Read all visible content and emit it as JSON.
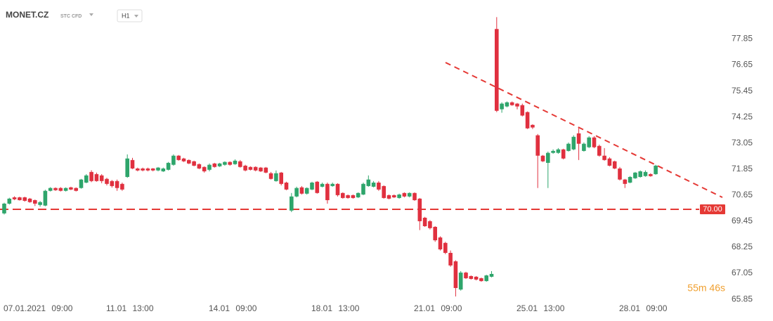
{
  "header": {
    "symbol": "MONET.CZ",
    "instrument": "STC CFD",
    "timeframe": "H1"
  },
  "countdown": "55m 46s",
  "chart_data": {
    "type": "candlestick",
    "up_color": "#2ea56b",
    "down_color": "#e0303f",
    "ylim": [
      65.4,
      79.0
    ],
    "yticks": [
      65.85,
      67.05,
      68.25,
      69.45,
      70.65,
      71.85,
      73.05,
      74.25,
      75.45,
      76.65,
      77.85
    ],
    "hline": {
      "value": 70,
      "label": "70.00",
      "color": "#e53935"
    },
    "categories": [
      "07.01.2021 09:00",
      null,
      null,
      null,
      null,
      null,
      null,
      null,
      null,
      null,
      null,
      null,
      null,
      null,
      null,
      null,
      null,
      null,
      null,
      null,
      "11.01 13:00",
      null,
      null,
      null,
      null,
      null,
      null,
      null,
      null,
      null,
      null,
      null,
      null,
      null,
      null,
      null,
      null,
      null,
      null,
      null,
      "14.01 09:00",
      null,
      null,
      null,
      null,
      null,
      null,
      null,
      null,
      null,
      null,
      null,
      null,
      null,
      null,
      null,
      null,
      null,
      null,
      null,
      "18.01 13:00",
      null,
      null,
      null,
      null,
      null,
      null,
      null,
      null,
      null,
      null,
      null,
      null,
      null,
      null,
      null,
      null,
      null,
      null,
      null,
      "21.01 09:00",
      null,
      null,
      null,
      null,
      null,
      null,
      null,
      null,
      null,
      null,
      null,
      null,
      null,
      null,
      null,
      null,
      null,
      null,
      null,
      "25.01 13:00",
      null,
      null,
      null,
      null,
      null,
      null,
      null,
      null,
      null,
      null,
      null,
      null,
      null,
      null,
      null,
      null,
      null,
      null,
      null,
      "28.01 09:00",
      null,
      null,
      null,
      null,
      null,
      null,
      null
    ],
    "open": [
      69.81,
      70.26,
      70.55,
      70.55,
      70.55,
      70.49,
      70.42,
      70.2,
      70.17,
      70.85,
      70.98,
      70.98,
      70.85,
      71.01,
      70.98,
      70.98,
      71.23,
      71.72,
      71.62,
      71.56,
      71.4,
      71.3,
      71.3,
      71.17,
      71.49,
      72.27,
      71.88,
      71.88,
      71.88,
      71.88,
      71.79,
      71.75,
      71.82,
      72.05,
      72.47,
      72.34,
      72.27,
      72.21,
      72.08,
      71.95,
      71.82,
      72.11,
      71.98,
      72.05,
      72.18,
      72.08,
      72.21,
      72.01,
      71.95,
      71.95,
      71.92,
      71.92,
      71.66,
      71.3,
      71.69,
      71.23,
      69.94,
      70.59,
      71.01,
      70.72,
      70.91,
      71.27,
      71.04,
      71.17,
      71.07,
      71.17,
      70.75,
      70.65,
      70.65,
      70.55,
      70.68,
      71.07,
      71.04,
      71.23,
      71.07,
      70.65,
      70.65,
      70.52,
      70.75,
      70.59,
      70.75,
      70.49,
      69.61,
      69.45,
      69.19,
      68.7,
      68.45,
      67.99,
      67.6,
      66.3,
      67.08,
      66.92,
      66.89,
      66.82,
      66.69,
      66.89,
      78.31,
      74.61,
      74.74,
      74.93,
      74.87,
      74.8,
      74.48,
      73.89,
      73.41,
      72.47,
      72.14,
      72.6,
      72.6,
      72.76,
      72.69,
      72.76,
      73.5,
      72.69,
      72.86,
      73.31,
      72.92,
      72.47,
      72.34,
      72.21,
      71.88,
      71.37,
      71.23,
      71.43,
      71.49,
      71.53,
      71.62,
      71.62
    ],
    "high": [
      70.3,
      70.53,
      70.6,
      70.58,
      70.58,
      70.52,
      70.45,
      70.38,
      70.9,
      71.02,
      71.01,
      71.02,
      71.01,
      71.04,
      71.01,
      71.4,
      71.62,
      71.8,
      71.69,
      71.62,
      71.45,
      71.35,
      71.37,
      71.23,
      72.53,
      72.37,
      71.92,
      71.92,
      71.92,
      71.9,
      71.95,
      71.92,
      72.18,
      72.53,
      72.5,
      72.37,
      72.3,
      72.24,
      72.11,
      71.98,
      72.11,
      72.14,
      72.14,
      72.21,
      72.21,
      72.3,
      72.27,
      72.05,
      71.98,
      71.98,
      71.95,
      71.95,
      71.72,
      71.79,
      71.72,
      71.27,
      70.75,
      71.04,
      71.07,
      71.01,
      71.27,
      71.3,
      71.23,
      71.23,
      71.23,
      71.2,
      70.78,
      70.68,
      70.68,
      70.78,
      71.23,
      71.56,
      71.3,
      71.3,
      71.1,
      70.68,
      70.68,
      70.72,
      70.78,
      70.78,
      70.78,
      70.52,
      69.65,
      69.5,
      69.22,
      68.75,
      68.5,
      68.1,
      67.65,
      67.15,
      67.12,
      66.95,
      66.92,
      66.85,
      66.98,
      67.15,
      78.86,
      74.93,
      74.97,
      74.97,
      74.9,
      74.87,
      74.51,
      73.92,
      73.47,
      72.5,
      72.66,
      72.76,
      72.82,
      72.79,
      73.08,
      73.41,
      73.77,
      73.08,
      73.37,
      73.37,
      72.98,
      72.82,
      72.4,
      72.24,
      71.95,
      71.4,
      71.53,
      71.72,
      71.79,
      71.79,
      71.66,
      72.05
    ],
    "low": [
      69.76,
      70.22,
      70.42,
      70.4,
      70.35,
      70.3,
      70.15,
      70.12,
      70.14,
      70.82,
      70.85,
      70.82,
      70.82,
      70.88,
      70.82,
      70.95,
      71.2,
      71.25,
      71.27,
      71.2,
      71.1,
      71.0,
      70.85,
      70.85,
      71.45,
      71.85,
      71.75,
      71.75,
      71.75,
      71.75,
      71.75,
      71.72,
      71.79,
      72.01,
      72.24,
      72.18,
      72.08,
      71.98,
      71.85,
      71.69,
      71.75,
      71.92,
      71.95,
      72.01,
      72.01,
      72.05,
      71.92,
      71.75,
      71.79,
      71.75,
      71.72,
      71.66,
      71.37,
      71.27,
      71.1,
      70.88,
      69.87,
      70.55,
      70.68,
      70.68,
      70.88,
      70.72,
      71.01,
      70.26,
      71.04,
      70.59,
      70.49,
      70.49,
      70.49,
      70.52,
      70.65,
      71.04,
      71.01,
      70.85,
      70.49,
      70.46,
      70.52,
      70.49,
      70.55,
      70.55,
      70.39,
      69.04,
      69.19,
      69.07,
      68.5,
      68.1,
      67.93,
      67.35,
      65.98,
      66.25,
      66.79,
      66.76,
      66.72,
      66.66,
      66.66,
      66.86,
      74.48,
      74.45,
      74.7,
      74.77,
      74.61,
      74.28,
      73.7,
      73.7,
      70.98,
      72.18,
      70.98,
      72.56,
      72.56,
      72.3,
      72.66,
      72.72,
      72.27,
      72.66,
      72.82,
      72.82,
      72.43,
      72.24,
      71.98,
      71.85,
      71.33,
      70.98,
      71.2,
      71.4,
      71.46,
      71.5,
      71.5,
      71.59
    ],
    "close": [
      70.26,
      70.49,
      70.46,
      70.42,
      70.39,
      70.33,
      70.26,
      70.33,
      70.85,
      70.98,
      70.88,
      70.85,
      70.98,
      70.91,
      70.85,
      71.37,
      71.56,
      71.3,
      71.3,
      71.3,
      71.17,
      71.07,
      70.98,
      70.91,
      72.34,
      71.88,
      71.79,
      71.79,
      71.79,
      71.79,
      71.92,
      71.88,
      72.14,
      72.47,
      72.27,
      72.21,
      72.11,
      72.01,
      71.88,
      71.75,
      72.05,
      71.95,
      72.11,
      72.18,
      72.05,
      72.24,
      71.95,
      71.79,
      71.82,
      71.79,
      71.75,
      71.69,
      71.4,
      71.66,
      71.17,
      70.91,
      70.59,
      70.98,
      70.72,
      70.98,
      71.23,
      70.75,
      71.17,
      70.42,
      71.17,
      70.65,
      70.52,
      70.52,
      70.52,
      70.75,
      71.17,
      71.37,
      71.23,
      70.91,
      70.52,
      70.49,
      70.55,
      70.68,
      70.59,
      70.75,
      70.42,
      69.45,
      69.22,
      69.13,
      68.57,
      68.15,
      67.99,
      67.41,
      66.37,
      67.08,
      66.82,
      66.79,
      66.76,
      66.69,
      66.95,
      67.02,
      74.54,
      74.87,
      74.93,
      74.8,
      74.74,
      74.32,
      73.73,
      73.77,
      72.47,
      72.21,
      72.6,
      72.69,
      72.76,
      72.34,
      73.02,
      73.34,
      73.02,
      73.02,
      73.31,
      72.86,
      72.47,
      72.27,
      72.01,
      71.88,
      71.37,
      71.17,
      71.49,
      71.69,
      71.75,
      71.72,
      71.53,
      72.01
    ]
  }
}
